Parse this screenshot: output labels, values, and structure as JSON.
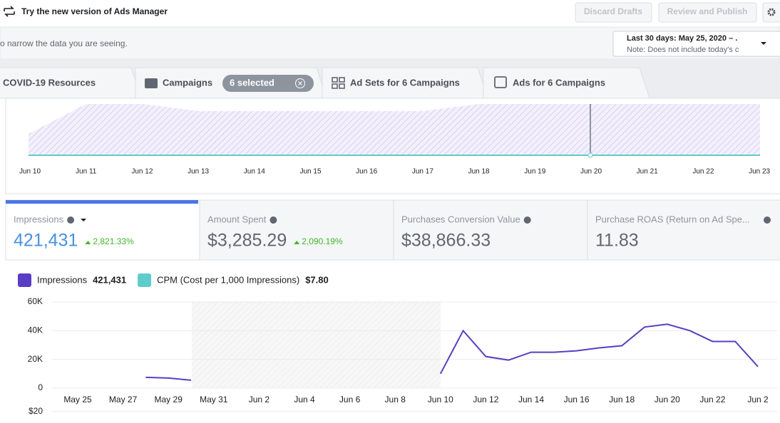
{
  "header": {
    "banner": "Try the new version of Ads Manager",
    "discard": "Discard Drafts",
    "publish": "Review and Publish"
  },
  "filter": {
    "hint": "o narrow the data you are seeing.",
    "date_range": "Last 30 days: May 25, 2020 – .",
    "note": "Note: Does not include today's c"
  },
  "tabs": [
    {
      "label": "COVID-19 Resources"
    },
    {
      "label": "Campaigns",
      "badge": "6 selected"
    },
    {
      "label": "Ad Sets for 6 Campaigns"
    },
    {
      "label": "Ads for 6 Campaigns"
    }
  ],
  "overview": {
    "dates": [
      "Jun 10",
      "Jun 11",
      "Jun 12",
      "Jun 13",
      "Jun 14",
      "Jun 15",
      "Jun 16",
      "Jun 17",
      "Jun 18",
      "Jun 19",
      "Jun 20",
      "Jun 21",
      "Jun 22",
      "Jun 23"
    ]
  },
  "metrics": [
    {
      "label": "Impressions",
      "value": "421,431",
      "change": "2,821.33%"
    },
    {
      "label": "Amount Spent",
      "value": "$3,285.29",
      "change": "2,090.19%"
    },
    {
      "label": "Purchases Conversion Value",
      "value": "$38,866.33"
    },
    {
      "label": "Purchase ROAS (Return on Ad Spe...",
      "value": "11.83"
    }
  ],
  "secondary_legend": {
    "name": "CPM (Cost per 1,000 Impressions)",
    "total": "$7.80",
    "color": "#5fcbcb"
  },
  "next_chart_tick": "$20",
  "chart_data": {
    "type": "line",
    "categories": [
      "May 25",
      null,
      "May 27",
      null,
      "May 29",
      null,
      "May 31",
      null,
      "Jun 2",
      null,
      "Jun 4",
      null,
      "Jun 6",
      null,
      "Jun 8",
      null,
      "Jun 10",
      null,
      "Jun 12",
      null,
      "Jun 14",
      null,
      "Jun 16",
      null,
      "Jun 18",
      null,
      "Jun 20",
      null,
      "Jun 22",
      null,
      "Jun 2"
    ],
    "series": [
      {
        "name": "Impressions",
        "total": "421,431",
        "color": "#5b3cc4",
        "values": [
          null,
          null,
          null,
          7500,
          7000,
          5500,
          null,
          null,
          null,
          null,
          null,
          null,
          null,
          null,
          null,
          null,
          10000,
          40000,
          22000,
          19500,
          25000,
          25000,
          26000,
          28000,
          29500,
          42500,
          44500,
          40000,
          32500,
          32500,
          15000
        ]
      }
    ],
    "ylim": [
      0,
      60000
    ],
    "yticks": [
      {
        "value": 0,
        "label": "0"
      },
      {
        "value": 20000,
        "label": "20K"
      },
      {
        "value": 40000,
        "label": "40K"
      },
      {
        "value": 60000,
        "label": "60K"
      }
    ],
    "grid": true
  }
}
